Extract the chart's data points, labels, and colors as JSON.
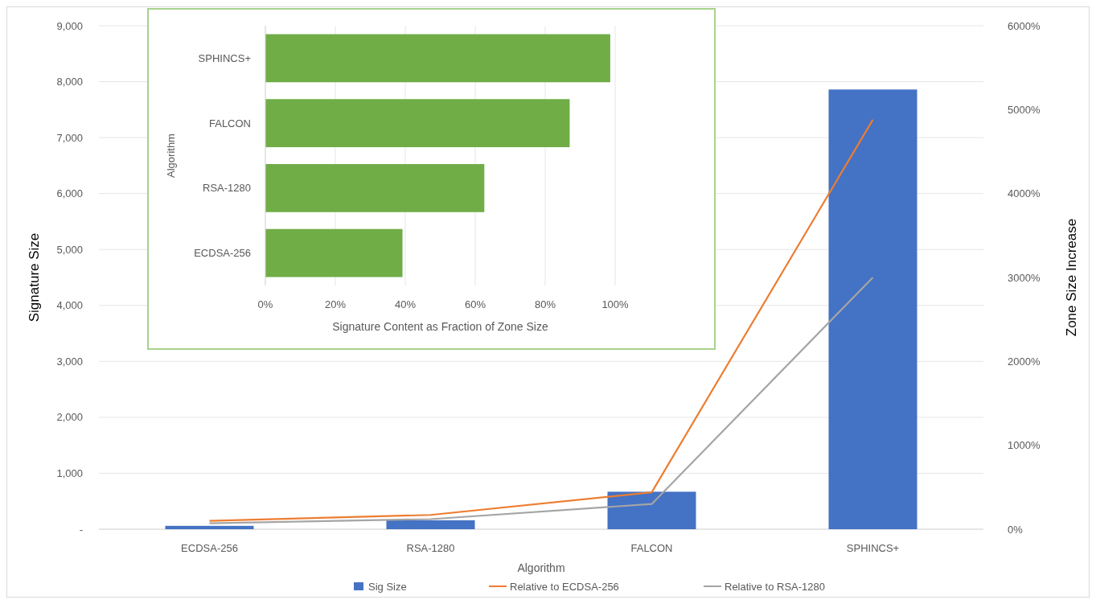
{
  "chart_data": [
    {
      "type": "bar",
      "xlabel": "Algorithm",
      "ylabel": "Signature Size",
      "y2label": "Zone Size Increase",
      "categories": [
        "ECDSA-256",
        "RSA-1280",
        "FALCON",
        "SPHINCS+"
      ],
      "series": [
        {
          "name": "Sig Size",
          "type": "bar",
          "color": "#4472c4",
          "values": [
            60,
            160,
            670,
            7860
          ]
        },
        {
          "name": "Relative to ECDSA-256",
          "type": "line",
          "axis": "y2",
          "color": "#ed7d31",
          "values": [
            100,
            170,
            440,
            4880
          ]
        },
        {
          "name": "Relative to RSA-1280",
          "type": "line",
          "axis": "y2",
          "color": "#a5a5a5",
          "values": [
            70,
            120,
            300,
            3000
          ]
        }
      ],
      "ylim": [
        0,
        9000
      ],
      "yticks": [
        {
          "value": 0,
          "label": "-"
        },
        {
          "value": 1000,
          "label": "1,000"
        },
        {
          "value": 2000,
          "label": "2,000"
        },
        {
          "value": 3000,
          "label": "3,000"
        },
        {
          "value": 4000,
          "label": "4,000"
        },
        {
          "value": 5000,
          "label": "5,000"
        },
        {
          "value": 6000,
          "label": "6,000"
        },
        {
          "value": 7000,
          "label": "7,000"
        },
        {
          "value": 8000,
          "label": "8,000"
        },
        {
          "value": 9000,
          "label": "9,000"
        }
      ],
      "y2lim": [
        0,
        6000
      ],
      "y2ticks": [
        {
          "value": 0,
          "label": "0%"
        },
        {
          "value": 1000,
          "label": "1000%"
        },
        {
          "value": 2000,
          "label": "2000%"
        },
        {
          "value": 3000,
          "label": "3000%"
        },
        {
          "value": 4000,
          "label": "4000%"
        },
        {
          "value": 5000,
          "label": "5000%"
        },
        {
          "value": 6000,
          "label": "6000%"
        }
      ],
      "grid": "y",
      "legend": "bottom"
    },
    {
      "type": "bar",
      "orientation": "horizontal",
      "xlabel": "Signature Content as Fraction of Zone Size",
      "ylabel": "Algorithm",
      "categories": [
        "SPHINCS+",
        "FALCON",
        "RSA-1280",
        "ECDSA-256"
      ],
      "values": [
        98.6,
        87,
        62.6,
        39.2
      ],
      "color": "#70ad47",
      "xlim": [
        0,
        100
      ],
      "xticks": [
        {
          "value": 0,
          "label": "0%"
        },
        {
          "value": 20,
          "label": "20%"
        },
        {
          "value": 40,
          "label": "40%"
        },
        {
          "value": 60,
          "label": "60%"
        },
        {
          "value": 80,
          "label": "80%"
        },
        {
          "value": 100,
          "label": "100%"
        }
      ],
      "grid": "x"
    }
  ]
}
